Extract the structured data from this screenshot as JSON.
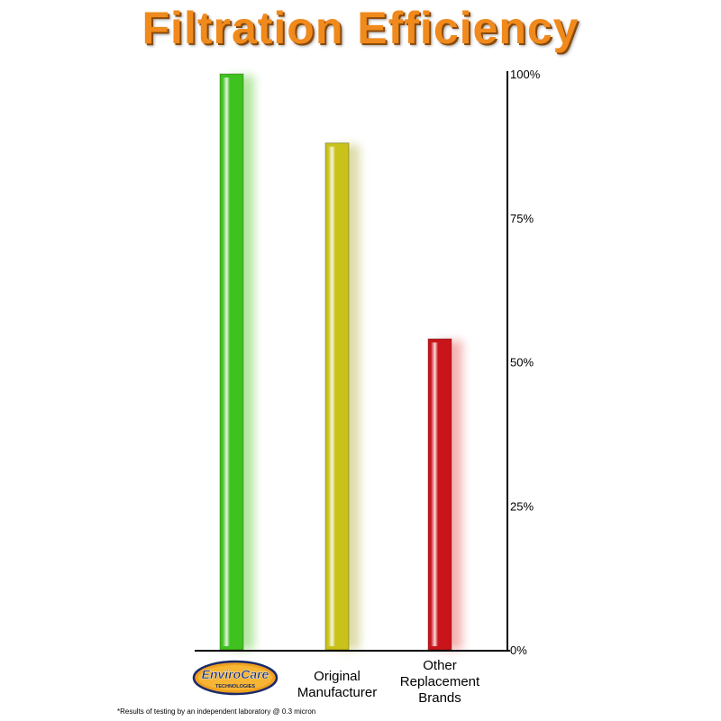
{
  "title": "Filtration Efficiency",
  "footnote": "*Results of testing by an independent laboratory @ 0.3 micron",
  "logo": {
    "name": "EnviroCare",
    "sub": "TECHNOLOGIES"
  },
  "colors": {
    "title": "#f08a1c",
    "green": "#3fc11f",
    "yellow": "#c9c21a",
    "red": "#c9141b"
  },
  "chart_data": {
    "type": "bar",
    "title": "Filtration Efficiency",
    "categories": [
      "EnviroCare Technologies",
      "Original Manufacturer",
      "Other Replacement Brands"
    ],
    "category_labels": [
      [],
      [
        "Original",
        "Manufacturer"
      ],
      [
        "Other",
        "Replacement",
        "Brands"
      ]
    ],
    "values": [
      100,
      88,
      54
    ],
    "bar_colors": [
      "#3fc11f",
      "#c9c21a",
      "#c9141b"
    ],
    "glow_colors": [
      "#b6e6a3",
      "#dedcaa",
      "#f5b3b3"
    ],
    "ylim": [
      0,
      100
    ],
    "yticks": [
      0,
      25,
      50,
      75,
      100
    ],
    "ytick_labels": [
      "0%",
      "25%",
      "50%",
      "75%",
      "100%"
    ],
    "yaxis_position": "right",
    "grid": false,
    "legend": "none"
  }
}
